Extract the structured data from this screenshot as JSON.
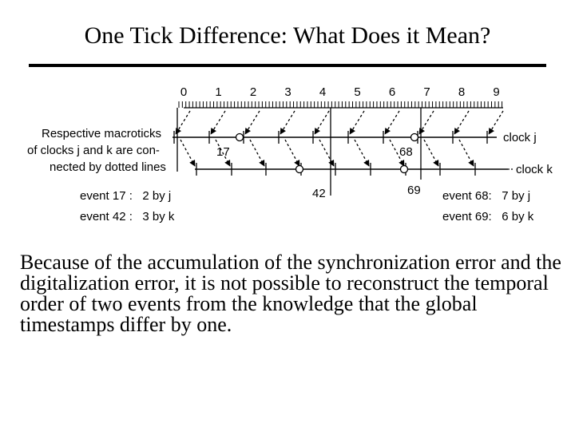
{
  "slide": {
    "title": "One Tick Difference:  What Does it Mean?",
    "body": "Because of the accumulation of the synchronization error and the digitalization error, it is not possible to reconstruct the temporal order of two events from the knowledge that the global timestamps differ by one."
  },
  "diagram": {
    "global_ticks": [
      "0",
      "1",
      "2",
      "3",
      "4",
      "5",
      "6",
      "7",
      "8",
      "9"
    ],
    "caption_lines": [
      "Respective macroticks",
      "of clocks j and k are con-",
      "nected by dotted lines"
    ],
    "clock_j_label": "clock j",
    "clock_k_label": "clock k",
    "event_17_label": "17",
    "event_68_label": "68",
    "event_42_label": "42",
    "event_69_label": "69",
    "left_event_lines": [
      "event 17 :   2 by j",
      "event 42 :   3 by k"
    ],
    "right_event_lines": [
      "event 68:   7 by j",
      "event 69:   6 by k"
    ]
  }
}
